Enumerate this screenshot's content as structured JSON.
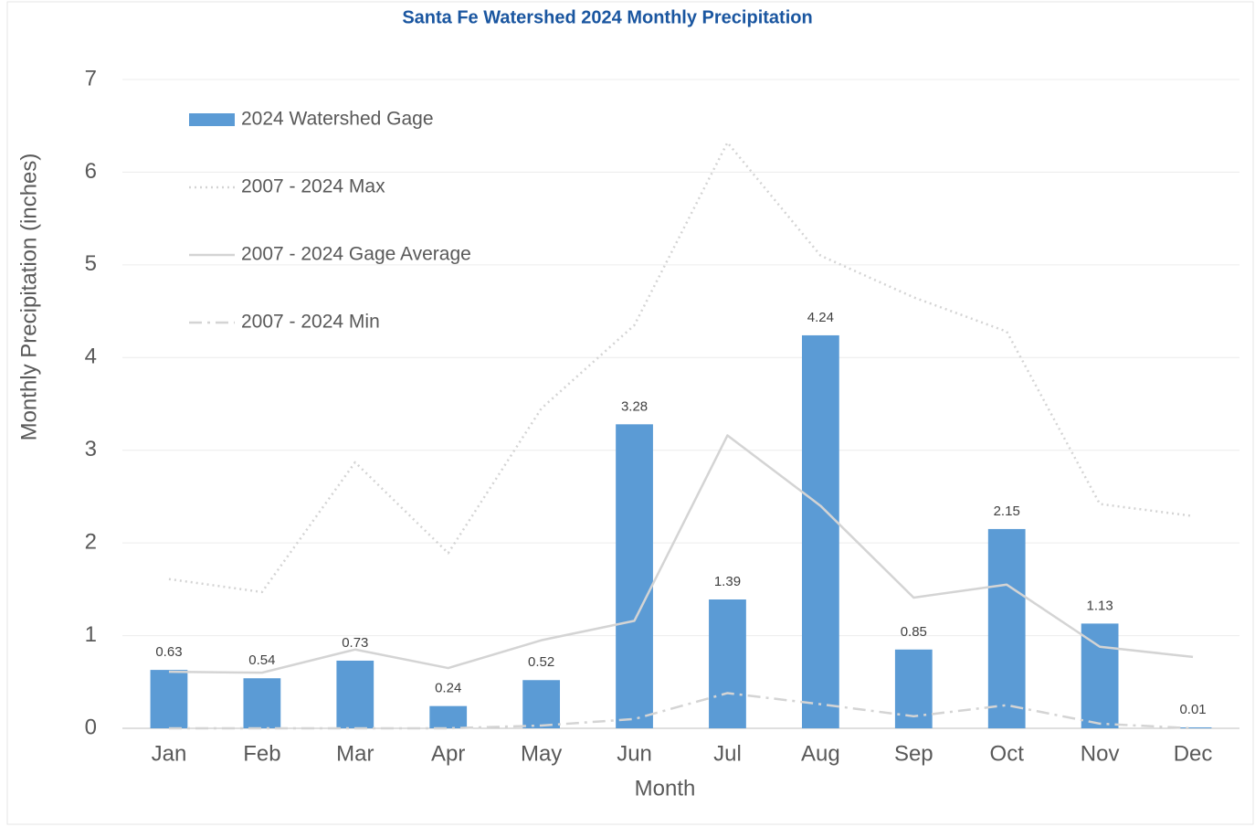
{
  "chart_data": {
    "type": "bar",
    "title": "Santa Fe Watershed 2024 Monthly Precipitation",
    "x_label": "Month",
    "y_label": "Monthly Precipitation (inches)",
    "categories": [
      "Jan",
      "Feb",
      "Mar",
      "Apr",
      "May",
      "Jun",
      "Jul",
      "Aug",
      "Sep",
      "Oct",
      "Nov",
      "Dec"
    ],
    "series": [
      {
        "name": "2024 Watershed Gage",
        "type": "bar",
        "color": "#5b9bd5",
        "values": [
          0.63,
          0.54,
          0.73,
          0.24,
          0.52,
          3.28,
          1.39,
          4.24,
          0.85,
          2.15,
          1.13,
          0.01
        ]
      },
      {
        "name": "2007 - 2024 Max",
        "type": "line",
        "dash": "dotted",
        "color": "#d4d4d4",
        "values": [
          1.61,
          1.47,
          2.87,
          1.89,
          3.45,
          4.35,
          6.32,
          5.1,
          4.65,
          4.28,
          2.42,
          2.29
        ]
      },
      {
        "name": "2007 - 2024 Gage Average",
        "type": "line",
        "dash": "solid",
        "color": "#d4d4d4",
        "values": [
          0.61,
          0.6,
          0.85,
          0.65,
          0.95,
          1.16,
          3.16,
          2.4,
          1.41,
          1.55,
          0.88,
          0.77
        ]
      },
      {
        "name": "2007 - 2024 Min",
        "type": "line",
        "dash": "dashdot",
        "color": "#d4d4d4",
        "values": [
          0,
          0,
          0,
          0,
          0.03,
          0.1,
          0.38,
          0.26,
          0.13,
          0.25,
          0.05,
          0
        ]
      }
    ],
    "ylim": [
      0,
      7
    ],
    "yticks": [
      0,
      1,
      2,
      3,
      4,
      5,
      6,
      7
    ],
    "grid": true,
    "legend": "top-left"
  }
}
